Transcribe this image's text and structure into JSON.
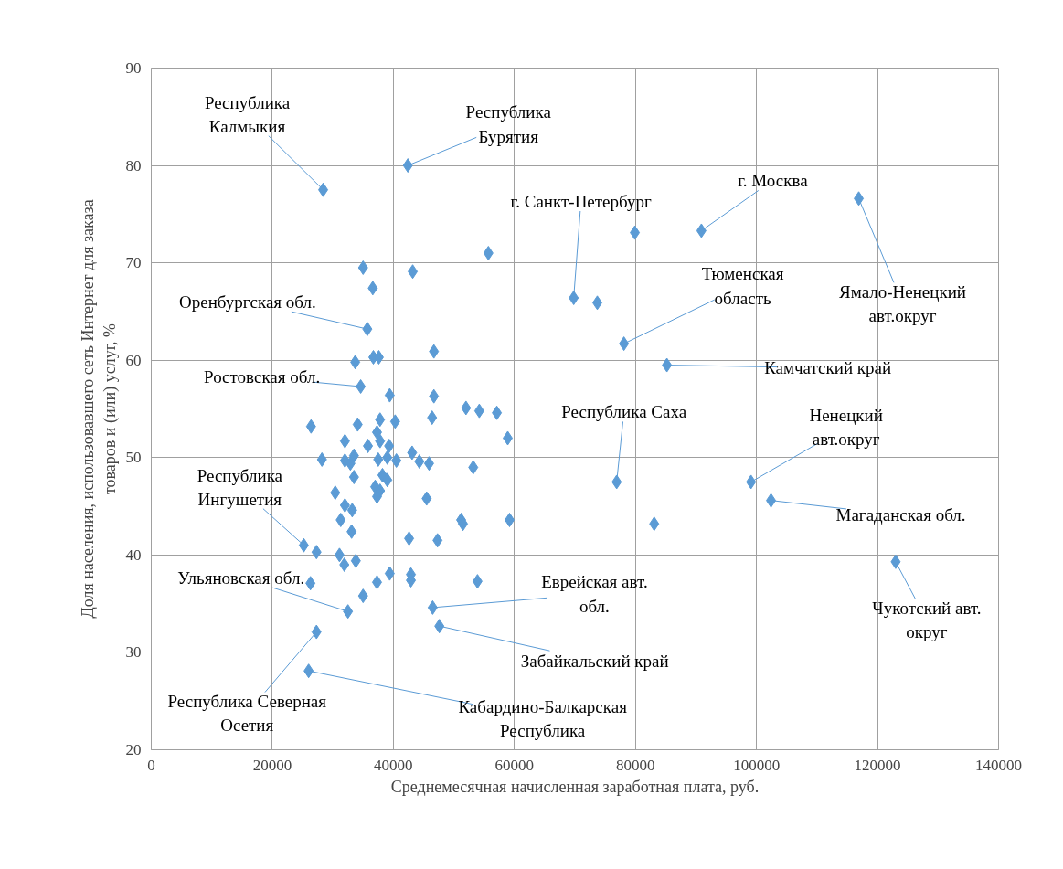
{
  "chart_data": {
    "type": "scatter",
    "xlabel": "Среднемесячная начисленная заработная плата, руб.",
    "ylabel": "Доля населения, использовавшего сеть Интернет для заказа\nтоваров и (или) услуг, %",
    "xlim": [
      0,
      140000
    ],
    "ylim": [
      20,
      90
    ],
    "xticks": [
      0,
      20000,
      40000,
      60000,
      80000,
      100000,
      120000,
      140000
    ],
    "yticks": [
      20,
      30,
      40,
      50,
      60,
      70,
      80,
      90
    ],
    "grid": true,
    "legend": false,
    "marker": "diamond",
    "series": [
      {
        "color": "#5b9bd5",
        "x": [
          28400,
          42400,
          116900,
          90900,
          79900,
          55700,
          35000,
          43200,
          36600,
          69800,
          73700,
          35700,
          46700,
          78100,
          85200,
          33700,
          36700,
          37600,
          34600,
          39400,
          46700,
          52000,
          54200,
          57100,
          58900,
          26400,
          34100,
          37800,
          40300,
          46400,
          32000,
          35800,
          37300,
          37800,
          39300,
          28200,
          32000,
          33500,
          32900,
          37500,
          39000,
          40500,
          43100,
          44300,
          45900,
          53200,
          33500,
          38200,
          39000,
          30400,
          32000,
          33200,
          31300,
          33100,
          25200,
          27300,
          31100,
          31900,
          33800,
          26300,
          32500,
          35000,
          37300,
          39400,
          42900,
          42900,
          53900,
          46500,
          47600,
          27300,
          26000,
          42600,
          47300,
          45500,
          51200,
          51500,
          59200,
          37000,
          37800,
          37300,
          76900,
          99100,
          102400,
          83100,
          123000
        ],
        "values": [
          77.5,
          80.0,
          76.6,
          73.3,
          73.1,
          71.0,
          69.5,
          69.1,
          67.4,
          66.4,
          65.9,
          63.2,
          60.9,
          61.7,
          59.5,
          59.8,
          60.3,
          60.3,
          57.3,
          56.4,
          56.3,
          55.1,
          54.8,
          54.6,
          52.0,
          53.2,
          53.4,
          53.9,
          53.7,
          54.1,
          51.7,
          51.2,
          52.6,
          51.7,
          51.2,
          49.8,
          49.7,
          50.2,
          49.4,
          49.8,
          50.0,
          49.7,
          50.5,
          49.6,
          49.4,
          49.0,
          48.0,
          48.2,
          47.7,
          46.4,
          45.1,
          44.6,
          43.6,
          42.4,
          41.0,
          40.3,
          40.0,
          39.0,
          39.4,
          37.1,
          34.2,
          35.8,
          37.2,
          38.1,
          38.0,
          37.4,
          37.3,
          34.6,
          32.7,
          32.1,
          28.1,
          41.7,
          41.5,
          45.8,
          43.6,
          43.2,
          43.6,
          47.0,
          46.6,
          46.0,
          47.5,
          47.5,
          45.6,
          43.2,
          39.3
        ]
      }
    ],
    "annotations": [
      {
        "text": "Республика\nКалмыкия",
        "x": 28400,
        "y": 77.5
      },
      {
        "text": "Республика\nБурятия",
        "x": 42400,
        "y": 80.0
      },
      {
        "text": "г. Санкт-Петербург",
        "x": 69800,
        "y": 66.4
      },
      {
        "text": "г. Москва",
        "x": 90900,
        "y": 73.3
      },
      {
        "text": "Ямало-Ненецкий\nавт.округ",
        "x": 116900,
        "y": 76.6
      },
      {
        "text": "Тюменская\nобласть",
        "x": 78100,
        "y": 61.7
      },
      {
        "text": "Оренбургская обл.",
        "x": 35700,
        "y": 63.2
      },
      {
        "text": "Камчатский край",
        "x": 85200,
        "y": 59.5
      },
      {
        "text": "Ростовская обл.",
        "x": 34600,
        "y": 57.3
      },
      {
        "text": "Республика Саха",
        "x": 76900,
        "y": 47.5
      },
      {
        "text": "Ненецкий\nавт.округ",
        "x": 99100,
        "y": 47.5
      },
      {
        "text": "Магаданская обл.",
        "x": 102400,
        "y": 45.6
      },
      {
        "text": "Республика\nИнгушетия",
        "x": 25200,
        "y": 41.0
      },
      {
        "text": "Ульяновская обл.",
        "x": 32500,
        "y": 34.2
      },
      {
        "text": "Еврейская авт.\nобл.",
        "x": 46500,
        "y": 34.6
      },
      {
        "text": "Чукотский авт.\nокруг",
        "x": 123000,
        "y": 39.3
      },
      {
        "text": "Забайкальский край",
        "x": 47600,
        "y": 32.7
      },
      {
        "text": "Республика Северная\nОсетия",
        "x": 27300,
        "y": 32.1
      },
      {
        "text": "Кабардино-Балкарская\nРеспублика",
        "x": 26000,
        "y": 28.1
      }
    ]
  }
}
